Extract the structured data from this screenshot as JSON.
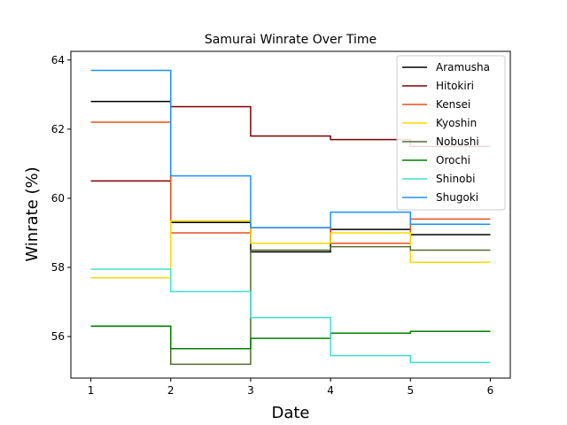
{
  "chart_data": {
    "type": "line",
    "step": "post",
    "title": "Samurai Winrate Over Time",
    "xlabel": "Date",
    "ylabel": "Winrate (%)",
    "xlim": [
      0.75,
      6.25
    ],
    "ylim": [
      54.8,
      64.25
    ],
    "xticks": [
      1,
      2,
      3,
      4,
      5,
      6
    ],
    "yticks": [
      56,
      58,
      60,
      62,
      64
    ],
    "grid": false,
    "legend_position": "top-right",
    "x": [
      1,
      2,
      3,
      4,
      5,
      6
    ],
    "series": [
      {
        "name": "Aramusha",
        "color": "#000000",
        "values": [
          62.8,
          59.3,
          58.45,
          59.1,
          58.95,
          58.95
        ]
      },
      {
        "name": "Hitokiri",
        "color": "#800000",
        "values": [
          60.5,
          62.65,
          61.8,
          61.7,
          61.5,
          61.5
        ]
      },
      {
        "name": "Kensei",
        "color": "#e8501c",
        "values": [
          62.2,
          59.0,
          59.15,
          58.7,
          59.4,
          59.4
        ]
      },
      {
        "name": "Kyoshin",
        "color": "#ffd700",
        "values": [
          57.7,
          59.35,
          58.7,
          59.0,
          58.15,
          58.15
        ]
      },
      {
        "name": "Nobushi",
        "color": "#556b2f",
        "values": [
          56.3,
          55.2,
          58.5,
          58.6,
          58.5,
          58.5
        ]
      },
      {
        "name": "Orochi",
        "color": "#008000",
        "values": [
          56.3,
          55.65,
          55.95,
          56.1,
          56.15,
          56.15
        ]
      },
      {
        "name": "Shinobi",
        "color": "#40e0d0",
        "values": [
          57.95,
          57.3,
          56.55,
          55.45,
          55.25,
          55.25
        ]
      },
      {
        "name": "Shugoki",
        "color": "#1e90ff",
        "values": [
          63.7,
          60.65,
          59.15,
          59.6,
          59.25,
          59.25
        ]
      }
    ]
  }
}
